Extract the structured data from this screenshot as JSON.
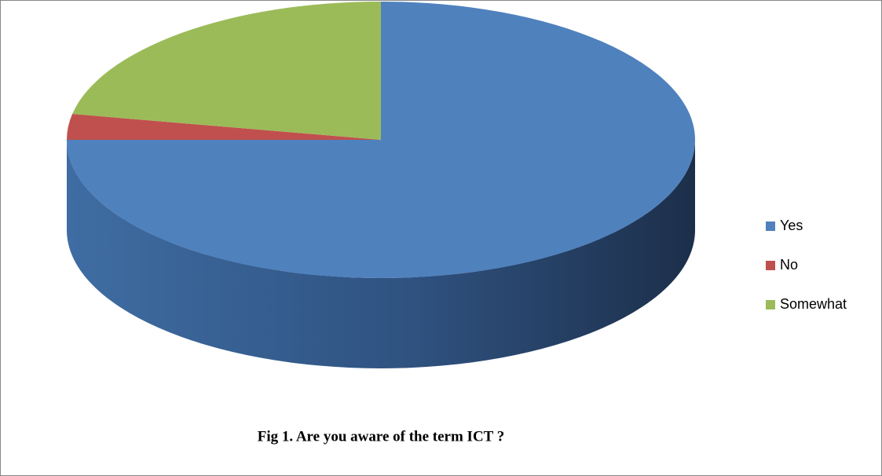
{
  "chart_data": {
    "type": "pie",
    "title": "Fig 1. Are you aware of the term ICT ?",
    "categories": [
      "Yes",
      "No",
      "Somewhat"
    ],
    "values": [
      75,
      3,
      22
    ],
    "colors": [
      "#4f81bd",
      "#c0504d",
      "#9bbb59"
    ],
    "legend": "right"
  }
}
